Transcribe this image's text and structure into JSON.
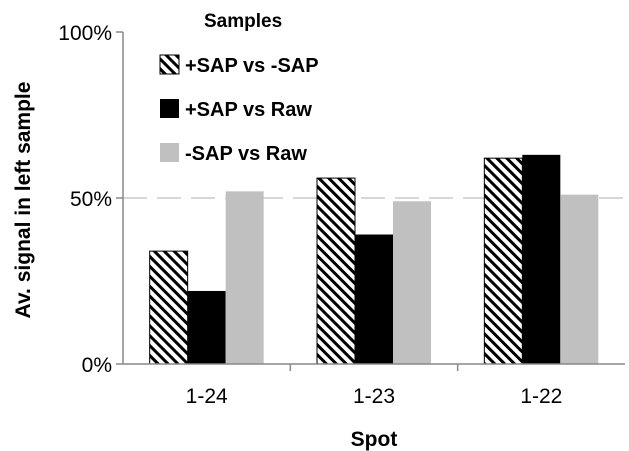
{
  "chart_data": {
    "type": "bar",
    "categories": [
      "1-24",
      "1-23",
      "1-22"
    ],
    "series": [
      {
        "name": "+SAP vs -SAP",
        "values": [
          34,
          56,
          62
        ],
        "pattern": "hatch",
        "color": "#000000"
      },
      {
        "name": "+SAP vs Raw",
        "values": [
          22,
          39,
          63
        ],
        "pattern": "solid",
        "color": "#000000"
      },
      {
        "name": "-SAP vs Raw",
        "values": [
          52,
          49,
          51
        ],
        "pattern": "solid",
        "color": "#c0c0c0"
      }
    ],
    "ylim": [
      0,
      100
    ],
    "yticks": [
      {
        "value": 0,
        "label": "0%"
      },
      {
        "value": 50,
        "label": "50%"
      },
      {
        "value": 100,
        "label": "100%"
      }
    ],
    "xlabel": "Spot",
    "ylabel": "Av. signal in left sample",
    "legend_title": "Samples",
    "legend_position": "top-left",
    "gridlines": [
      50
    ]
  }
}
